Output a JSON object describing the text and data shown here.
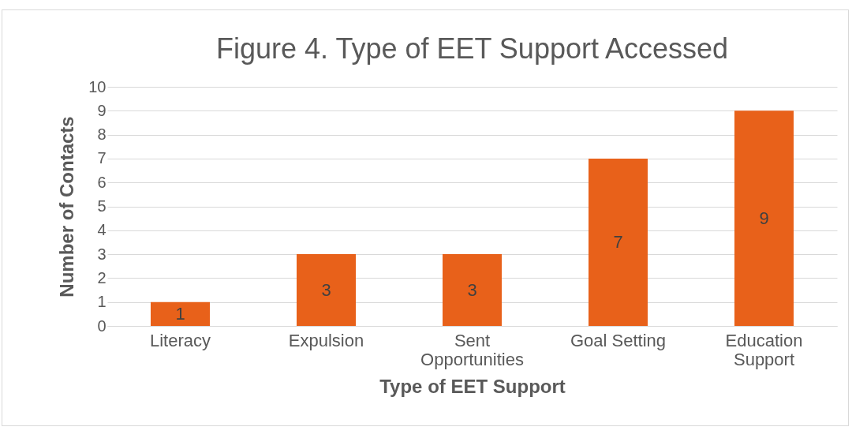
{
  "chart_data": {
    "type": "bar",
    "title": "Figure 4. Type of EET Support Accessed",
    "xlabel": "Type of EET Support",
    "ylabel": "Number of Contacts",
    "categories": [
      "Literacy",
      "Expulsion",
      "Sent Opportunities",
      "Goal Setting",
      "Education Support"
    ],
    "values": [
      1,
      3,
      3,
      7,
      9
    ],
    "color": "#e8611a",
    "ylim": [
      0,
      10
    ],
    "yticks": [
      0,
      1,
      2,
      3,
      4,
      5,
      6,
      7,
      8,
      9,
      10
    ],
    "grid": "y",
    "data_labels": true
  }
}
